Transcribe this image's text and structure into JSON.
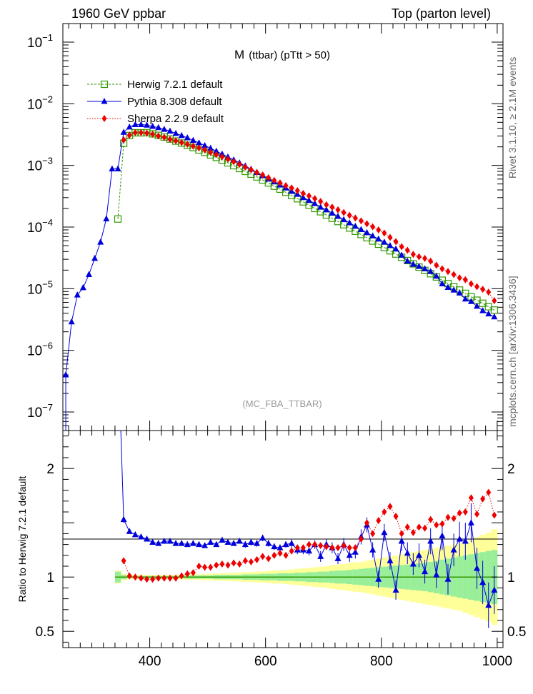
{
  "header": {
    "left_title": "1960 GeV ppbar",
    "right_title": "Top (parton level)"
  },
  "plot_title": {
    "main": "M",
    "detail": "(ttbar) (pTtt > 50)"
  },
  "watermark": "(MC_FBA_TTBAR)",
  "side_labels": {
    "rivet": "Rivet 3.1.10, ≥ 2.1M events",
    "source": "mcplots.cern.ch [arXiv:1306.3436]"
  },
  "ratio_ylabel": "Ratio to Herwig 7.2.1 default",
  "colors": {
    "herwig": "#339900",
    "pythia": "#0000dd",
    "sherpa": "#ee0000",
    "band_inner": "#99ee99",
    "band_outer": "#ffff99"
  },
  "chart_data": [
    {
      "type": "line",
      "name": "main",
      "yscale": "log",
      "xlim": [
        250,
        1010
      ],
      "ylim": [
        5e-08,
        0.2
      ],
      "y_ticks": [
        {
          "value": 0.1,
          "label": "10",
          "exp": "−1"
        },
        {
          "value": 0.01,
          "label": "10",
          "exp": "−2"
        },
        {
          "value": 0.001,
          "label": "10",
          "exp": "−3"
        },
        {
          "value": 0.0001,
          "label": "10",
          "exp": "−4"
        },
        {
          "value": 1e-05,
          "label": "10",
          "exp": "−5"
        },
        {
          "value": 1e-06,
          "label": "10",
          "exp": "−6"
        },
        {
          "value": 1e-07,
          "label": "10",
          "exp": "−7"
        }
      ],
      "legend": [
        {
          "key": "herwig",
          "label": "Herwig 7.2.1 default"
        },
        {
          "key": "pythia",
          "label": "Pythia 8.308 default"
        },
        {
          "key": "sherpa",
          "label": "Sherpa 2.2.9 default"
        }
      ],
      "series": [
        {
          "name": "Herwig 7.2.1 default",
          "key": "herwig",
          "x": [
            345,
            355,
            365,
            375,
            385,
            395,
            405,
            415,
            425,
            435,
            445,
            455,
            465,
            475,
            485,
            495,
            505,
            515,
            525,
            535,
            545,
            555,
            565,
            575,
            585,
            595,
            605,
            615,
            625,
            635,
            645,
            655,
            665,
            675,
            685,
            695,
            705,
            715,
            725,
            735,
            745,
            755,
            765,
            775,
            785,
            795,
            805,
            815,
            825,
            835,
            845,
            855,
            865,
            875,
            885,
            895,
            905,
            915,
            925,
            935,
            945,
            955,
            965,
            975,
            985,
            995
          ],
          "y": [
            0.000135,
            0.00228,
            0.00305,
            0.00338,
            0.00338,
            0.0034,
            0.00325,
            0.00307,
            0.00288,
            0.00268,
            0.00248,
            0.0023,
            0.00212,
            0.00195,
            0.00178,
            0.00163,
            0.00148,
            0.00135,
            0.00122,
            0.0011,
            0.00099,
            0.00089,
            0.0008,
            0.00072,
            0.00065,
            0.00058,
            0.00052,
            0.00046,
            0.000412,
            0.000366,
            0.000325,
            0.000288,
            0.000256,
            0.000227,
            0.0002,
            0.000177,
            0.000157,
            0.000139,
            0.000123,
            0.000109,
            9.65e-05,
            8.55e-05,
            7.58e-05,
            6.71e-05,
            5.94e-05,
            5.26e-05,
            4.66e-05,
            4.12e-05,
            3.65e-05,
            3.23e-05,
            2.86e-05,
            2.53e-05,
            2.24e-05,
            1.98e-05,
            1.75e-05,
            1.55e-05,
            1.37e-05,
            1.21e-05,
            1.07e-05,
            9.5e-06,
            8.4e-06,
            7.4e-06,
            6.5e-06,
            5.8e-06,
            5.1e-06,
            4.5e-06
          ]
        },
        {
          "name": "Pythia 8.308 default",
          "key": "pythia",
          "x": [
            255,
            265,
            275,
            285,
            295,
            305,
            315,
            325,
            335,
            345,
            355,
            365,
            375,
            385,
            395,
            405,
            415,
            425,
            435,
            445,
            455,
            465,
            475,
            485,
            495,
            505,
            515,
            525,
            535,
            545,
            555,
            565,
            575,
            585,
            595,
            605,
            615,
            625,
            635,
            645,
            655,
            665,
            675,
            685,
            695,
            705,
            715,
            725,
            735,
            745,
            755,
            765,
            775,
            785,
            795,
            805,
            815,
            825,
            835,
            845,
            855,
            865,
            875,
            885,
            895,
            905,
            915,
            925,
            935,
            945,
            955,
            965,
            975,
            985,
            995
          ],
          "y": [
            4e-07,
            2.9e-06,
            7.9e-06,
            1.04e-05,
            1.7e-05,
            3.1e-05,
            5.7e-05,
            0.000136,
            0.00088,
            0.00088,
            0.00345,
            0.0042,
            0.0046,
            0.0046,
            0.0045,
            0.0043,
            0.0041,
            0.00385,
            0.0036,
            0.0033,
            0.00305,
            0.0028,
            0.00255,
            0.00232,
            0.0021,
            0.0019,
            0.0017,
            0.00153,
            0.00137,
            0.00123,
            0.0011,
            0.00098,
            0.00087,
            0.00077,
            0.00068,
            0.0006,
            0.00054,
            0.00048,
            0.00043,
            0.00038,
            0.00034,
            0.0003,
            0.00027,
            0.00024,
            0.00021,
            0.00019,
            0.000168,
            0.000149,
            0.000132,
            0.000117,
            0.000103,
            9.1e-05,
            8.1e-05,
            7.2e-05,
            6.4e-05,
            5.7e-05,
            5e-05,
            4.4e-05,
            3.5e-05,
            2.8e-05,
            2.5e-05,
            2.3e-05,
            2.1e-05,
            1.9e-05,
            1.6e-05,
            1.2e-05,
            1.05e-05,
            9.5e-06,
            8.5e-06,
            6.8e-06,
            6.2e-06,
            5.2e-06,
            4.4e-06,
            3.9e-06,
            3.5e-06
          ]
        },
        {
          "name": "Sherpa 2.2.9 default",
          "key": "sherpa",
          "x": [
            355,
            365,
            375,
            385,
            395,
            405,
            415,
            425,
            435,
            445,
            455,
            465,
            475,
            485,
            495,
            505,
            515,
            525,
            535,
            545,
            555,
            565,
            575,
            585,
            595,
            605,
            615,
            625,
            635,
            645,
            655,
            665,
            675,
            685,
            695,
            705,
            715,
            725,
            735,
            745,
            755,
            765,
            775,
            785,
            795,
            805,
            815,
            825,
            835,
            845,
            855,
            865,
            875,
            885,
            895,
            905,
            915,
            925,
            935,
            945,
            955,
            965,
            975,
            985,
            995
          ],
          "y": [
            0.0026,
            0.0031,
            0.0034,
            0.0034,
            0.00335,
            0.0032,
            0.003,
            0.00285,
            0.00265,
            0.0025,
            0.00235,
            0.0022,
            0.00205,
            0.00192,
            0.00178,
            0.00163,
            0.0015,
            0.00138,
            0.00126,
            0.00115,
            0.00104,
            0.00094,
            0.00085,
            0.00077,
            0.0007,
            0.00063,
            0.00057,
            0.00052,
            0.00047,
            0.00043,
            0.00039,
            0.00035,
            0.00032,
            0.00029,
            0.00026,
            0.00023,
            0.00021,
            0.00019,
            0.000172,
            0.000155,
            0.00014,
            0.000126,
            0.000113,
            0.000101,
            9e-05,
            8e-05,
            6.8e-05,
            5.8e-05,
            4.8e-05,
            4.2e-05,
            3.6e-05,
            3.3e-05,
            3.1e-05,
            2.8e-05,
            2.4e-05,
            2.1e-05,
            1.9e-05,
            1.7e-05,
            1.5e-05,
            1.4e-05,
            1.2e-05,
            1.08e-05,
            9.8e-06,
            8.8e-06,
            6.4e-06
          ]
        }
      ]
    },
    {
      "type": "line",
      "name": "ratio",
      "ylabel": "Ratio to Herwig 7.2.1 default",
      "xlim": [
        250,
        1010
      ],
      "ylim": [
        0.35,
        2.35
      ],
      "x_ticks": [
        400,
        600,
        800,
        1000
      ],
      "y_ticks": [
        {
          "value": 2,
          "label": "2"
        },
        {
          "value": 1,
          "label": "1"
        },
        {
          "value": 0.5,
          "label": "0.5"
        }
      ],
      "band_x": [
        345,
        355,
        365,
        375,
        385,
        395,
        405,
        415,
        425,
        435,
        445,
        455,
        465,
        475,
        485,
        495,
        505,
        515,
        525,
        535,
        545,
        555,
        565,
        575,
        585,
        595,
        605,
        615,
        625,
        635,
        645,
        655,
        665,
        675,
        685,
        695,
        705,
        715,
        725,
        735,
        745,
        755,
        765,
        775,
        785,
        795,
        805,
        815,
        825,
        835,
        845,
        855,
        865,
        875,
        885,
        895,
        905,
        915,
        925,
        935,
        945,
        955,
        965,
        975,
        985,
        995
      ],
      "band_inner": [
        0.05,
        0.02,
        0.01,
        0.01,
        0.01,
        0.01,
        0.01,
        0.01,
        0.01,
        0.01,
        0.01,
        0.01,
        0.015,
        0.015,
        0.015,
        0.015,
        0.015,
        0.02,
        0.02,
        0.02,
        0.02,
        0.02,
        0.025,
        0.025,
        0.025,
        0.03,
        0.03,
        0.03,
        0.035,
        0.035,
        0.035,
        0.04,
        0.04,
        0.045,
        0.045,
        0.05,
        0.05,
        0.055,
        0.06,
        0.06,
        0.065,
        0.07,
        0.075,
        0.08,
        0.085,
        0.09,
        0.095,
        0.1,
        0.105,
        0.11,
        0.115,
        0.12,
        0.125,
        0.13,
        0.14,
        0.15,
        0.16,
        0.17,
        0.18,
        0.19,
        0.2,
        0.21,
        0.22,
        0.23,
        0.24,
        0.25
      ],
      "band_outer": [
        0.06,
        0.03,
        0.02,
        0.02,
        0.02,
        0.02,
        0.02,
        0.02,
        0.02,
        0.02,
        0.02,
        0.02,
        0.025,
        0.025,
        0.025,
        0.03,
        0.03,
        0.035,
        0.035,
        0.035,
        0.04,
        0.04,
        0.045,
        0.045,
        0.05,
        0.05,
        0.055,
        0.06,
        0.06,
        0.065,
        0.07,
        0.075,
        0.08,
        0.085,
        0.09,
        0.095,
        0.1,
        0.11,
        0.115,
        0.12,
        0.13,
        0.135,
        0.14,
        0.15,
        0.16,
        0.17,
        0.18,
        0.19,
        0.2,
        0.21,
        0.22,
        0.23,
        0.24,
        0.25,
        0.26,
        0.27,
        0.28,
        0.29,
        0.3,
        0.31,
        0.33,
        0.35,
        0.37,
        0.39,
        0.41,
        0.44
      ],
      "series": [
        {
          "name": "Pythia 8.308 default",
          "key": "pythia",
          "x": [
            350,
            355,
            365,
            375,
            385,
            395,
            405,
            415,
            425,
            435,
            445,
            455,
            465,
            475,
            485,
            495,
            505,
            515,
            525,
            535,
            545,
            555,
            565,
            575,
            585,
            595,
            605,
            615,
            625,
            635,
            645,
            655,
            665,
            675,
            685,
            695,
            705,
            715,
            725,
            735,
            745,
            755,
            765,
            775,
            785,
            795,
            805,
            815,
            825,
            835,
            845,
            855,
            865,
            875,
            885,
            895,
            905,
            915,
            925,
            935,
            945,
            955,
            965,
            975,
            985,
            995
          ],
          "y": [
            2.35,
            1.53,
            1.42,
            1.39,
            1.37,
            1.35,
            1.32,
            1.31,
            1.33,
            1.33,
            1.31,
            1.31,
            1.3,
            1.31,
            1.3,
            1.29,
            1.32,
            1.3,
            1.34,
            1.32,
            1.31,
            1.33,
            1.3,
            1.32,
            1.31,
            1.36,
            1.31,
            1.28,
            1.27,
            1.3,
            1.31,
            1.25,
            1.25,
            1.24,
            1.3,
            1.19,
            1.3,
            1.27,
            1.17,
            1.3,
            1.2,
            1.23,
            1.37,
            1.48,
            1.25,
            0.98,
            1.41,
            1.15,
            0.88,
            1.33,
            1.22,
            1.12,
            1.2,
            1.05,
            1.33,
            1.02,
            1.38,
            0.98,
            1.25,
            1.35,
            1.33,
            1.5,
            1.08,
            0.95,
            0.74,
            0.88
          ],
          "err": [
            0.0,
            0.03,
            0.02,
            0.02,
            0.02,
            0.02,
            0.02,
            0.02,
            0.02,
            0.02,
            0.02,
            0.02,
            0.02,
            0.02,
            0.02,
            0.02,
            0.02,
            0.02,
            0.02,
            0.02,
            0.02,
            0.02,
            0.03,
            0.03,
            0.03,
            0.03,
            0.03,
            0.03,
            0.03,
            0.03,
            0.04,
            0.04,
            0.04,
            0.04,
            0.04,
            0.05,
            0.05,
            0.05,
            0.05,
            0.06,
            0.06,
            0.06,
            0.07,
            0.07,
            0.07,
            0.08,
            0.08,
            0.08,
            0.09,
            0.09,
            0.1,
            0.1,
            0.11,
            0.11,
            0.12,
            0.12,
            0.13,
            0.14,
            0.15,
            0.16,
            0.17,
            0.18,
            0.19,
            0.2,
            0.21,
            0.22
          ]
        },
        {
          "name": "Sherpa 2.2.9 default",
          "key": "sherpa",
          "x": [
            355,
            365,
            375,
            385,
            395,
            405,
            415,
            425,
            435,
            445,
            455,
            465,
            475,
            485,
            495,
            505,
            515,
            525,
            535,
            545,
            555,
            565,
            575,
            585,
            595,
            605,
            615,
            625,
            635,
            645,
            655,
            665,
            675,
            685,
            695,
            705,
            715,
            725,
            735,
            745,
            755,
            765,
            775,
            785,
            795,
            805,
            815,
            825,
            835,
            845,
            855,
            865,
            875,
            885,
            895,
            905,
            915,
            925,
            935,
            945,
            955,
            965,
            975,
            985,
            995
          ],
          "y": [
            1.15,
            1.01,
            1.0,
            0.99,
            0.98,
            0.98,
            0.99,
            0.99,
            0.99,
            0.99,
            1.01,
            1.03,
            1.04,
            1.1,
            1.09,
            1.09,
            1.11,
            1.12,
            1.11,
            1.13,
            1.12,
            1.15,
            1.14,
            1.16,
            1.19,
            1.17,
            1.2,
            1.22,
            1.2,
            1.24,
            1.27,
            1.27,
            1.3,
            1.3,
            1.29,
            1.28,
            1.27,
            1.27,
            1.29,
            1.27,
            1.27,
            1.35,
            1.5,
            1.4,
            1.52,
            1.6,
            1.65,
            1.56,
            1.4,
            1.46,
            1.41,
            1.46,
            1.45,
            1.53,
            1.48,
            1.49,
            1.55,
            1.54,
            1.59,
            1.6,
            1.73,
            1.58,
            1.72,
            1.78,
            1.57
          ]
        }
      ]
    }
  ]
}
